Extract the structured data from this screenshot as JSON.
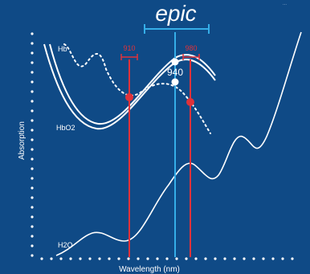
{
  "chart_data": {
    "type": "line",
    "title": "epic",
    "xlabel": "Wavelength (nm)",
    "ylabel": "Absorption",
    "grid": false,
    "series": [
      {
        "name": "Hb",
        "style": "dotted"
      },
      {
        "name": "HbO2",
        "style": "double"
      },
      {
        "name": "H2O",
        "style": "solid"
      }
    ],
    "markers": [
      {
        "label": "910",
        "color": "#e0323a"
      },
      {
        "label": "940",
        "color": "#ffffff"
      },
      {
        "label": "980",
        "color": "#e0323a"
      }
    ]
  },
  "colors": {
    "background": "#0f4a86",
    "accent_red": "#e0323a",
    "accent_blue": "#35aee8",
    "curve": "#ffffff"
  },
  "corner_mark": "..."
}
